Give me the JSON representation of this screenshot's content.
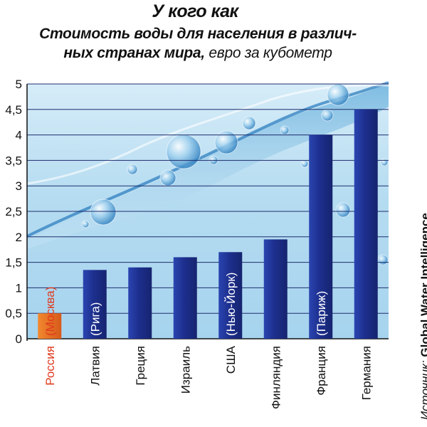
{
  "header": {
    "title": "У кого как",
    "subtitle_line1": "Стоимость воды для населения в различ-",
    "subtitle_line2": "ных странах мира,",
    "unit": "евро за кубометр"
  },
  "source": {
    "label": "Источник:",
    "value": "Global Water Intelligence"
  },
  "colors": {
    "highlight_bar": "#e9701f",
    "bar": "#1d2f8e",
    "highlight_label": "#e03a1e",
    "water": "#8fc6e6"
  },
  "chart_data": {
    "type": "bar",
    "title": "Стоимость воды для населения в различных странах мира",
    "ylabel": "евро за кубометр",
    "ylim": [
      0,
      5
    ],
    "yticks": [
      "0",
      "0,5",
      "1",
      "1,5",
      "2",
      "2,5",
      "3",
      "3,5",
      "4",
      "4,5",
      "5"
    ],
    "grid": true,
    "categories": [
      "Россия",
      "Латвия",
      "Греция",
      "Израиль",
      "США",
      "Финляндия",
      "Франция",
      "Германия"
    ],
    "values": [
      0.5,
      1.35,
      1.4,
      1.6,
      1.7,
      1.95,
      4.0,
      4.5
    ],
    "annotations": [
      "(Москва)",
      "(Рига)",
      "",
      "",
      "(Нью-Йорк)",
      "",
      "(Париж)",
      ""
    ],
    "highlight_index": 0
  }
}
